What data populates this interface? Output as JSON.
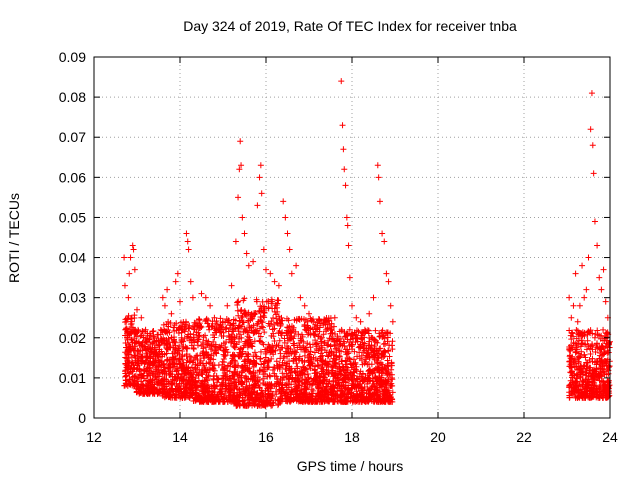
{
  "chart_data": {
    "type": "scatter",
    "title": "Day 324 of 2019, Rate Of TEC Index for receiver tnba",
    "xlabel": "GPS time / hours",
    "ylabel": "ROTI / TECUs",
    "xlim": [
      12,
      24
    ],
    "ylim": [
      0,
      0.09
    ],
    "x_ticks": [
      "12",
      "14",
      "16",
      "18",
      "20",
      "22",
      "24"
    ],
    "y_ticks": [
      "0",
      "0.01",
      "0.02",
      "0.03",
      "0.04",
      "0.05",
      "0.06",
      "0.07",
      "0.08",
      "0.09"
    ],
    "grid": true,
    "marker": "plus",
    "marker_color": "#ff0000",
    "series": [
      {
        "points": [
          [
            12.7,
            0.04
          ],
          [
            12.72,
            0.033
          ],
          [
            12.75,
            0.024
          ],
          [
            12.8,
            0.03
          ],
          [
            12.82,
            0.036
          ],
          [
            12.85,
            0.04
          ],
          [
            12.9,
            0.043
          ],
          [
            12.92,
            0.042
          ],
          [
            12.95,
            0.037
          ],
          [
            13.0,
            0.027
          ],
          [
            13.1,
            0.025
          ],
          [
            13.2,
            0.022
          ],
          [
            13.3,
            0.021
          ],
          [
            13.4,
            0.019
          ],
          [
            13.6,
            0.03
          ],
          [
            13.65,
            0.028
          ],
          [
            13.7,
            0.032
          ],
          [
            13.8,
            0.026
          ],
          [
            13.9,
            0.034
          ],
          [
            13.95,
            0.036
          ],
          [
            14.0,
            0.029
          ],
          [
            14.1,
            0.022
          ],
          [
            14.15,
            0.046
          ],
          [
            14.18,
            0.044
          ],
          [
            14.2,
            0.042
          ],
          [
            14.25,
            0.034
          ],
          [
            14.3,
            0.03
          ],
          [
            14.4,
            0.023
          ],
          [
            14.5,
            0.031
          ],
          [
            14.6,
            0.03
          ],
          [
            14.7,
            0.028
          ],
          [
            14.8,
            0.025
          ],
          [
            14.9,
            0.022
          ],
          [
            15.0,
            0.024
          ],
          [
            15.1,
            0.028
          ],
          [
            15.2,
            0.033
          ],
          [
            15.3,
            0.044
          ],
          [
            15.35,
            0.055
          ],
          [
            15.38,
            0.062
          ],
          [
            15.4,
            0.069
          ],
          [
            15.42,
            0.063
          ],
          [
            15.45,
            0.05
          ],
          [
            15.5,
            0.046
          ],
          [
            15.55,
            0.041
          ],
          [
            15.6,
            0.038
          ],
          [
            15.7,
            0.039
          ],
          [
            15.8,
            0.053
          ],
          [
            15.85,
            0.06
          ],
          [
            15.88,
            0.063
          ],
          [
            15.9,
            0.056
          ],
          [
            15.95,
            0.042
          ],
          [
            16.0,
            0.037
          ],
          [
            16.1,
            0.036
          ],
          [
            16.2,
            0.034
          ],
          [
            16.3,
            0.033
          ],
          [
            16.4,
            0.054
          ],
          [
            16.45,
            0.05
          ],
          [
            16.5,
            0.046
          ],
          [
            16.55,
            0.042
          ],
          [
            16.6,
            0.036
          ],
          [
            16.7,
            0.038
          ],
          [
            16.8,
            0.03
          ],
          [
            16.9,
            0.028
          ],
          [
            17.0,
            0.026
          ],
          [
            17.1,
            0.024
          ],
          [
            17.2,
            0.023
          ],
          [
            17.3,
            0.02
          ],
          [
            17.4,
            0.022
          ],
          [
            17.5,
            0.021
          ],
          [
            17.6,
            0.025
          ],
          [
            17.75,
            0.084
          ],
          [
            17.78,
            0.073
          ],
          [
            17.8,
            0.067
          ],
          [
            17.82,
            0.062
          ],
          [
            17.85,
            0.058
          ],
          [
            17.88,
            0.05
          ],
          [
            17.9,
            0.048
          ],
          [
            17.92,
            0.043
          ],
          [
            17.95,
            0.035
          ],
          [
            18.0,
            0.028
          ],
          [
            18.1,
            0.025
          ],
          [
            18.2,
            0.024
          ],
          [
            18.3,
            0.022
          ],
          [
            18.4,
            0.026
          ],
          [
            18.5,
            0.03
          ],
          [
            18.6,
            0.063
          ],
          [
            18.62,
            0.06
          ],
          [
            18.65,
            0.054
          ],
          [
            18.7,
            0.046
          ],
          [
            18.75,
            0.044
          ],
          [
            18.8,
            0.036
          ],
          [
            18.85,
            0.034
          ],
          [
            18.9,
            0.028
          ],
          [
            18.95,
            0.024
          ],
          [
            23.05,
            0.03
          ],
          [
            23.1,
            0.025
          ],
          [
            23.15,
            0.028
          ],
          [
            23.2,
            0.036
          ],
          [
            23.25,
            0.024
          ],
          [
            23.3,
            0.028
          ],
          [
            23.35,
            0.038
          ],
          [
            23.4,
            0.03
          ],
          [
            23.45,
            0.032
          ],
          [
            23.5,
            0.04
          ],
          [
            23.55,
            0.072
          ],
          [
            23.58,
            0.081
          ],
          [
            23.6,
            0.068
          ],
          [
            23.62,
            0.061
          ],
          [
            23.65,
            0.049
          ],
          [
            23.7,
            0.043
          ],
          [
            23.75,
            0.035
          ],
          [
            23.8,
            0.032
          ],
          [
            23.85,
            0.037
          ],
          [
            23.9,
            0.029
          ],
          [
            23.95,
            0.025
          ],
          [
            24.0,
            0.019
          ]
        ]
      }
    ],
    "dense_bands": [
      {
        "x_range": [
          12.7,
          12.95
        ],
        "y_low": 0.008,
        "y_high": 0.026
      },
      {
        "x_range": [
          12.95,
          13.6
        ],
        "y_low": 0.006,
        "y_high": 0.022
      },
      {
        "x_range": [
          13.6,
          14.3
        ],
        "y_low": 0.005,
        "y_high": 0.024
      },
      {
        "x_range": [
          14.3,
          15.3
        ],
        "y_low": 0.004,
        "y_high": 0.025
      },
      {
        "x_range": [
          15.3,
          16.3
        ],
        "y_low": 0.003,
        "y_high": 0.03
      },
      {
        "x_range": [
          16.3,
          17.6
        ],
        "y_low": 0.004,
        "y_high": 0.025
      },
      {
        "x_range": [
          17.6,
          18.95
        ],
        "y_low": 0.004,
        "y_high": 0.022
      },
      {
        "x_range": [
          23.05,
          24.0
        ],
        "y_low": 0.005,
        "y_high": 0.022
      }
    ]
  }
}
